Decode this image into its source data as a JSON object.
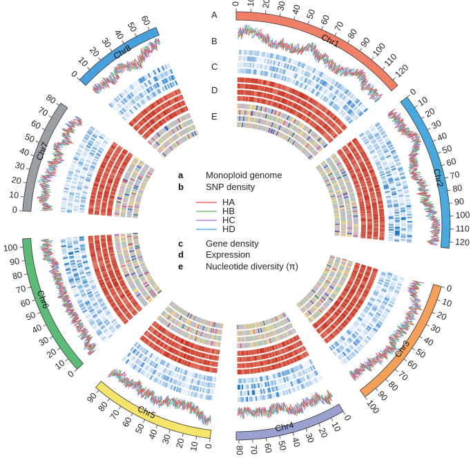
{
  "track_labels": [
    "A",
    "B",
    "C",
    "D",
    "E"
  ],
  "legend": {
    "a": {
      "key": "a",
      "text": "Monoploid genome"
    },
    "b": {
      "key": "b",
      "text": "SNP density"
    },
    "haplotypes": [
      {
        "name": "HA",
        "color": "#e8474a"
      },
      {
        "name": "HB",
        "color": "#5bb55f"
      },
      {
        "name": "HC",
        "color": "#9a6cc8"
      },
      {
        "name": "HD",
        "color": "#3a9be0"
      }
    ],
    "c": {
      "key": "c",
      "text": "Gene density"
    },
    "d": {
      "key": "d",
      "text": "Expression"
    },
    "e": {
      "key": "e",
      "text": "Nucleotide diversity (π)"
    }
  },
  "chart_data": {
    "type": "circos",
    "chromosomes": [
      {
        "name": "Chr1",
        "length_mb": 125,
        "color": "#ef8067",
        "ticks": [
          0,
          10,
          20,
          30,
          40,
          50,
          60,
          70,
          80,
          90,
          100,
          110,
          120
        ]
      },
      {
        "name": "Chr2",
        "length_mb": 125,
        "color": "#4aa8dc",
        "ticks": [
          0,
          10,
          20,
          30,
          40,
          50,
          60,
          70,
          80,
          90,
          100,
          110,
          120
        ]
      },
      {
        "name": "Chr3",
        "length_mb": 100,
        "color": "#f4a05a",
        "ticks": [
          0,
          10,
          20,
          30,
          40,
          50,
          60,
          70,
          80,
          90,
          100
        ]
      },
      {
        "name": "Chr4",
        "length_mb": 82,
        "color": "#9aa0d0",
        "ticks": [
          0,
          10,
          20,
          30,
          40,
          50,
          60,
          70,
          80
        ]
      },
      {
        "name": "Chr5",
        "length_mb": 93,
        "color": "#f7e46a",
        "ticks": [
          0,
          10,
          20,
          30,
          40,
          50,
          60,
          70,
          80,
          90
        ]
      },
      {
        "name": "Chr6",
        "length_mb": 106,
        "color": "#5dbb7a",
        "ticks": [
          0,
          10,
          20,
          30,
          40,
          50,
          60,
          70,
          80,
          90,
          100
        ]
      },
      {
        "name": "Chr7",
        "length_mb": 82,
        "color": "#9b9ea3",
        "ticks": [
          0,
          10,
          20,
          30,
          40,
          50,
          60,
          70,
          80
        ]
      },
      {
        "name": "Chr8",
        "length_mb": 65,
        "color": "#4aa0dc",
        "ticks": [
          0,
          10,
          20,
          30,
          40,
          50,
          60
        ]
      }
    ],
    "tracks": [
      "Monoploid genome",
      "SNP density",
      "Gene density",
      "Expression",
      "Nucleotide diversity (π)"
    ],
    "colors": {
      "gene_density": [
        "#eef4fb",
        "#1f78c8"
      ],
      "expression": [
        "#f6c0a8",
        "#c62a1c"
      ]
    }
  }
}
